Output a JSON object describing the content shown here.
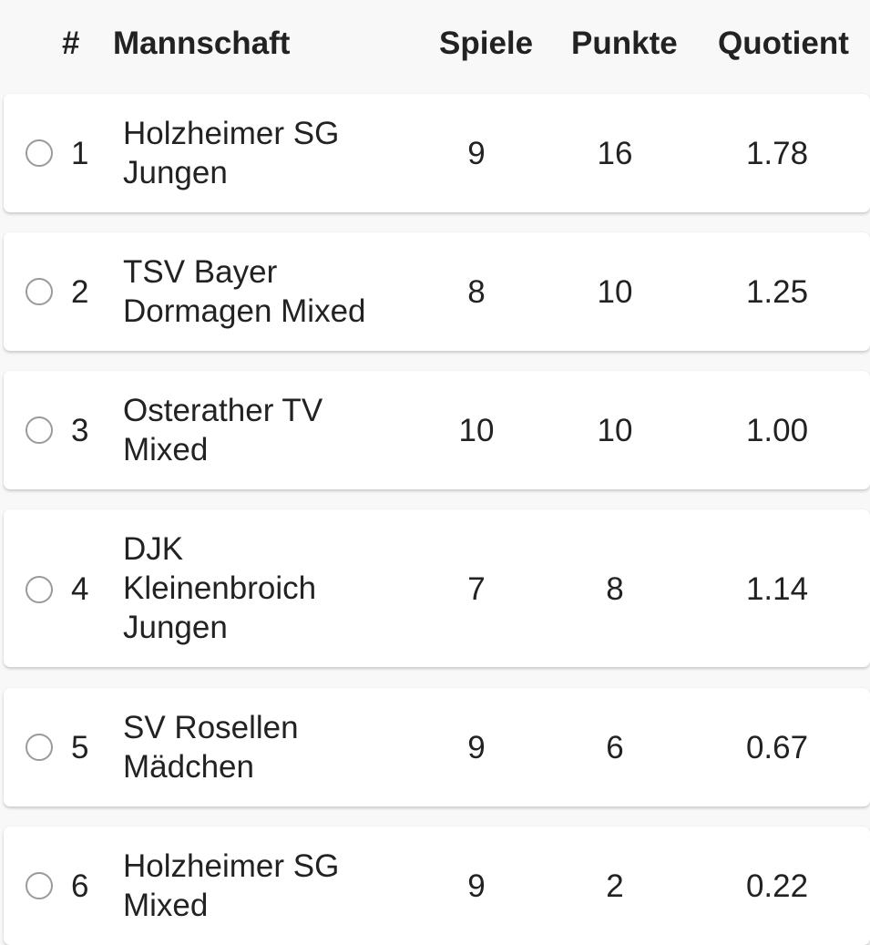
{
  "header": {
    "rank": "#",
    "team": "Mannschaft",
    "games": "Spiele",
    "points": "Punkte",
    "quotient": "Quotient"
  },
  "rows": [
    {
      "rank": "1",
      "team": "Holzheimer SG Jungen",
      "games": "9",
      "points": "16",
      "quotient": "1.78",
      "selected": false
    },
    {
      "rank": "2",
      "team": "TSV Bayer Dormagen Mixed",
      "games": "8",
      "points": "10",
      "quotient": "1.25",
      "selected": false
    },
    {
      "rank": "3",
      "team": "Osterather TV Mixed",
      "games": "10",
      "points": "10",
      "quotient": "1.00",
      "selected": false
    },
    {
      "rank": "4",
      "team": "DJK Kleinenbroich Jungen",
      "games": "7",
      "points": "8",
      "quotient": "1.14",
      "selected": false
    },
    {
      "rank": "5",
      "team": "SV Rosellen Mädchen",
      "games": "9",
      "points": "6",
      "quotient": "0.67",
      "selected": false
    },
    {
      "rank": "6",
      "team": "Holzheimer SG Mixed",
      "games": "9",
      "points": "2",
      "quotient": "0.22",
      "selected": false
    }
  ]
}
